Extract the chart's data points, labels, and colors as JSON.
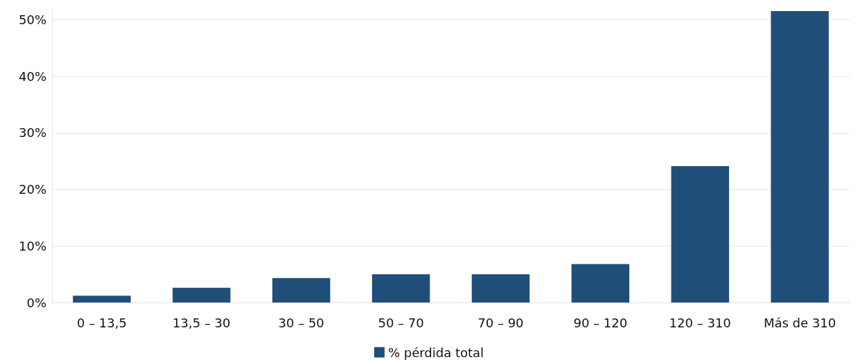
{
  "chart_data": {
    "type": "bar",
    "categories": [
      "0 – 13,5",
      "13,5 – 30",
      "30 – 50",
      "50 – 70",
      "70 – 90",
      "90 – 120",
      "120 – 310",
      "Más de 310"
    ],
    "series": [
      {
        "name": "% pérdida total",
        "color": "#1f4e79",
        "values": [
          1.2,
          2.6,
          4.3,
          5.0,
          5.0,
          6.8,
          24.1,
          51.5
        ]
      }
    ],
    "ylim": [
      0,
      52
    ],
    "yticks": [
      {
        "value": 0,
        "label": "0%"
      },
      {
        "value": 10,
        "label": "10%"
      },
      {
        "value": 20,
        "label": "20%"
      },
      {
        "value": 30,
        "label": "30%"
      },
      {
        "value": 40,
        "label": "40%"
      },
      {
        "value": 50,
        "label": "50%"
      }
    ],
    "grid": "y",
    "legend": "bottom"
  }
}
